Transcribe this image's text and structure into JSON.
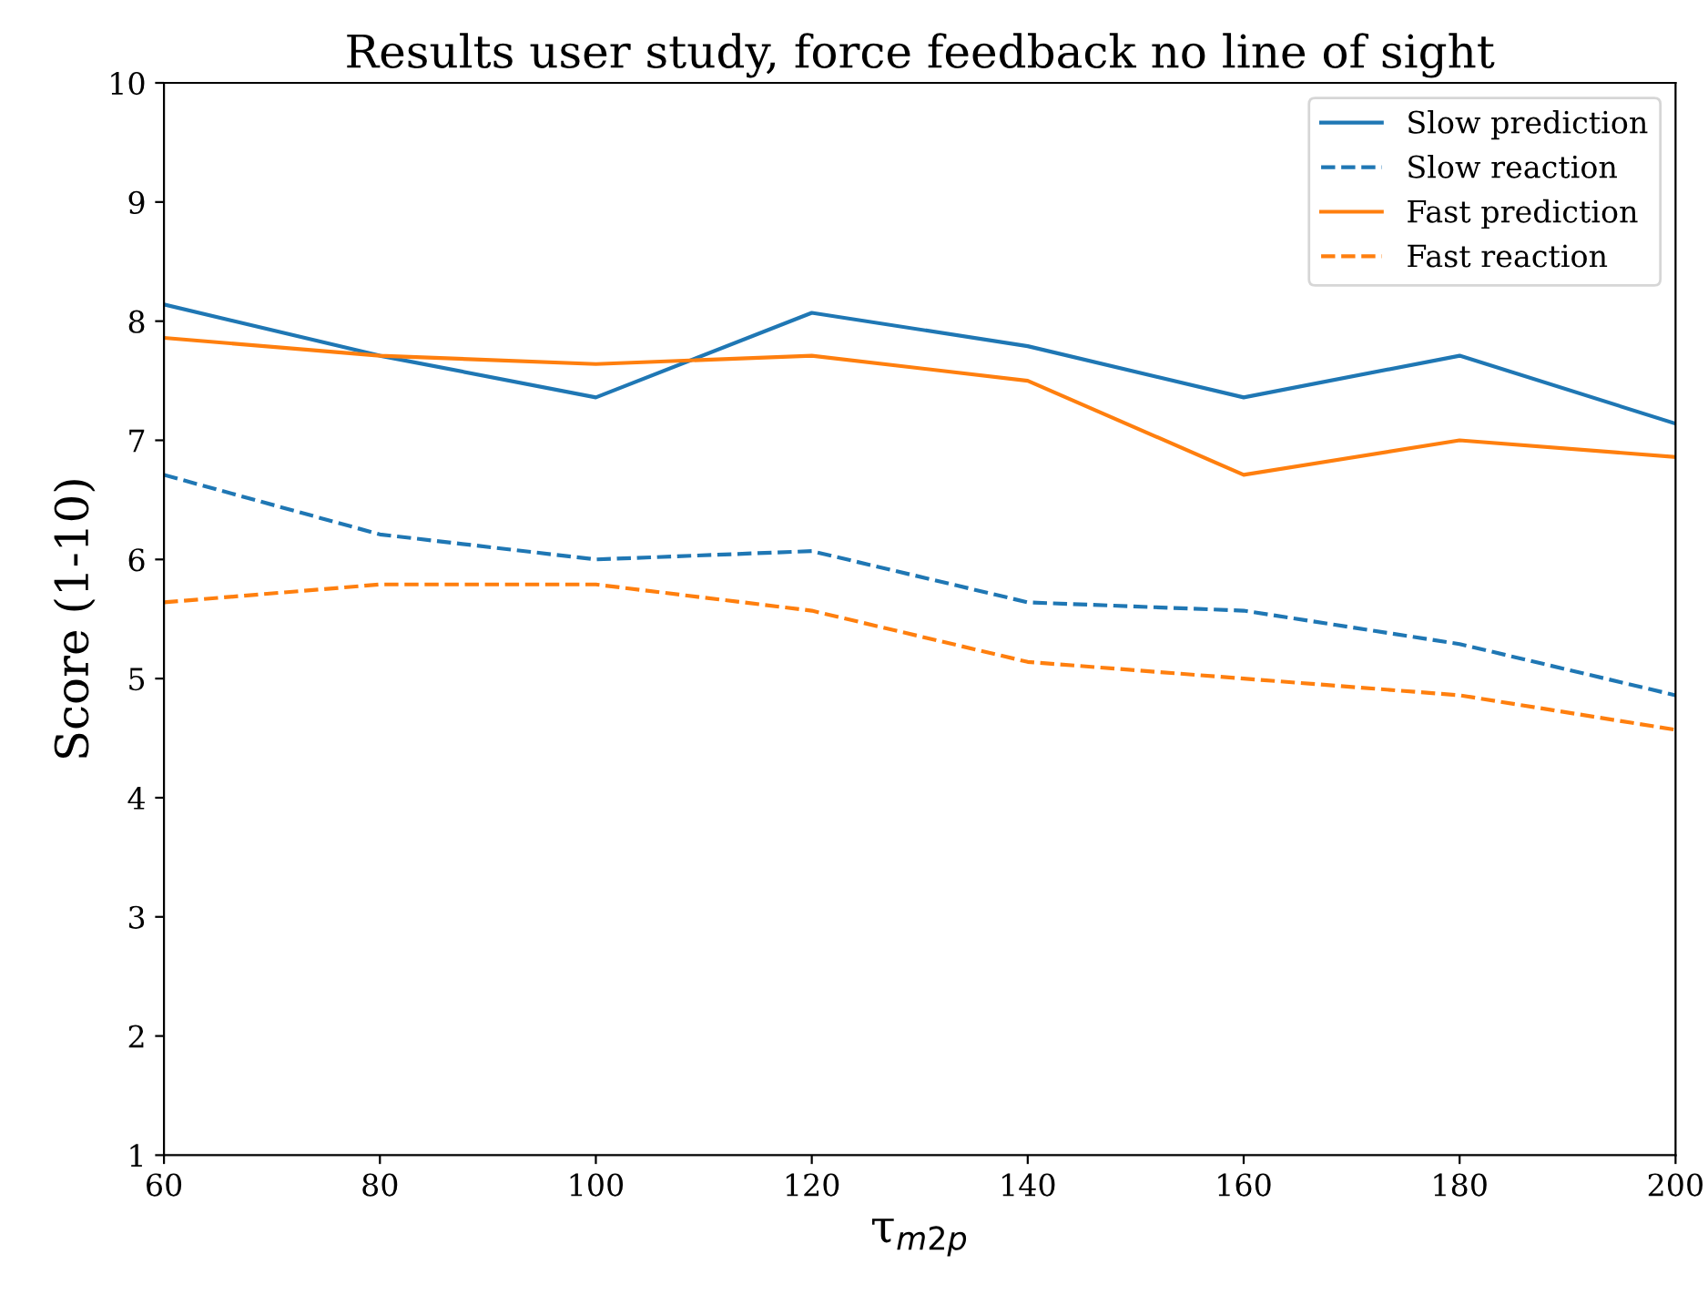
{
  "chart_data": {
    "type": "line",
    "title": "Results user study, force feedback no line of sight",
    "xlabel": "τ$_{m2p}$",
    "ylabel": "Score (1-10)",
    "x": [
      60,
      80,
      100,
      120,
      140,
      160,
      180,
      200
    ],
    "series": [
      {
        "name": "Slow prediction",
        "color": "#1f77b4",
        "line_style": "solid",
        "values": [
          8.14,
          7.71,
          7.36,
          8.07,
          7.79,
          7.36,
          7.71,
          7.14
        ]
      },
      {
        "name": "Slow reaction",
        "color": "#1f77b4",
        "line_style": "dashed",
        "values": [
          6.71,
          6.21,
          6.0,
          6.07,
          5.64,
          5.57,
          5.29,
          4.86
        ]
      },
      {
        "name": "Fast prediction",
        "color": "#ff7f0e",
        "line_style": "solid",
        "values": [
          7.86,
          7.71,
          7.64,
          7.71,
          7.5,
          6.71,
          7.0,
          6.86
        ]
      },
      {
        "name": "Fast reaction",
        "color": "#ff7f0e",
        "line_style": "dashed",
        "values": [
          5.64,
          5.79,
          5.79,
          5.57,
          5.14,
          5.0,
          4.86,
          4.57
        ]
      }
    ],
    "xlim": [
      60,
      200
    ],
    "xticks": [
      60,
      80,
      100,
      120,
      140,
      160,
      180,
      200
    ],
    "ylim": [
      1,
      10
    ],
    "yticks": [
      1,
      2,
      3,
      4,
      5,
      6,
      7,
      8,
      9,
      10
    ],
    "grid": false,
    "legend": "top right"
  }
}
